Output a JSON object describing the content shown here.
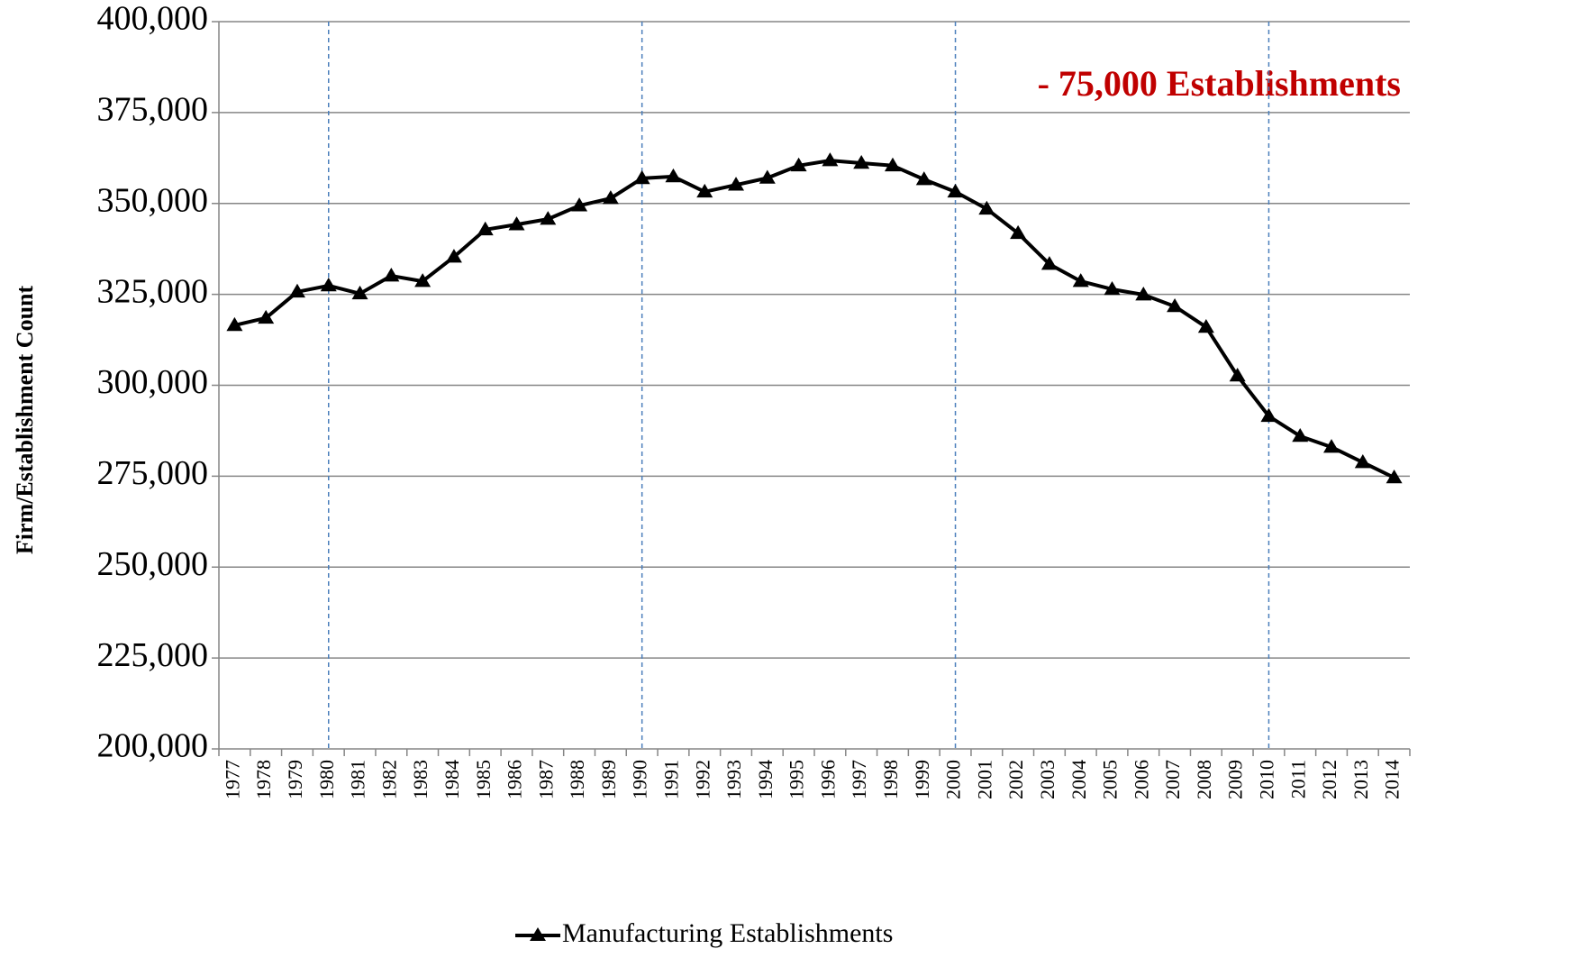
{
  "chart_data": {
    "type": "line",
    "y_label": "Firm/Establishment Count",
    "annotation": "- 75,000 Establishments",
    "annotation_color": "#c00000",
    "categories": [
      "1977",
      "1978",
      "1979",
      "1980",
      "1981",
      "1982",
      "1983",
      "1984",
      "1985",
      "1986",
      "1987",
      "1988",
      "1989",
      "1990",
      "1991",
      "1992",
      "1993",
      "1994",
      "1995",
      "1996",
      "1997",
      "1998",
      "1999",
      "2000",
      "2001",
      "2002",
      "2003",
      "2004",
      "2005",
      "2006",
      "2007",
      "2008",
      "2009",
      "2010",
      "2011",
      "2012",
      "2013",
      "2014"
    ],
    "series": [
      {
        "name": "Manufacturing Establishments",
        "color": "#000000",
        "values": [
          316500,
          318500,
          325700,
          327400,
          325200,
          330100,
          328600,
          335300,
          342800,
          344200,
          345700,
          349400,
          351400,
          356900,
          357400,
          353200,
          355100,
          357000,
          360400,
          361800,
          361100,
          360400,
          356600,
          353200,
          348500,
          341800,
          333300,
          328600,
          326400,
          324900,
          321700,
          316000,
          302600,
          291500,
          286000,
          283000,
          278800,
          274600
        ]
      }
    ],
    "ylim": [
      200000,
      400000
    ],
    "yticks": [
      {
        "value": 200000,
        "label": "200,000"
      },
      {
        "value": 225000,
        "label": "225,000"
      },
      {
        "value": 250000,
        "label": "250,000"
      },
      {
        "value": 275000,
        "label": "275,000"
      },
      {
        "value": 300000,
        "label": "300,000"
      },
      {
        "value": 325000,
        "label": "325,000"
      },
      {
        "value": 350000,
        "label": "350,000"
      },
      {
        "value": 375000,
        "label": "375,000"
      },
      {
        "value": 400000,
        "label": "400,000"
      }
    ],
    "grid": true,
    "vlines": [
      "1980",
      "1990",
      "2000",
      "2010"
    ],
    "vline_color": "#4a7ebb",
    "legend": "bottom"
  }
}
